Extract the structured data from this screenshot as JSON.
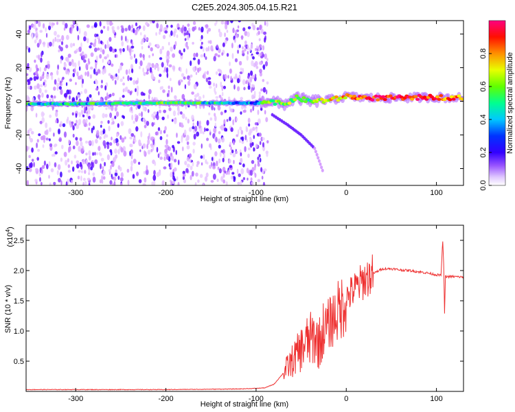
{
  "chart_data": [
    {
      "type": "heatmap",
      "title": "C2E5.2024.305.04.15.R21",
      "xlabel": "Height of straight line (km)",
      "ylabel": "Frequency (Hz)",
      "xlim": [
        -355,
        130
      ],
      "ylim": [
        -50,
        48
      ],
      "xticks": [
        -300,
        -200,
        -100,
        0,
        100
      ],
      "yticks": [
        -40,
        -20,
        0,
        20,
        40
      ],
      "colorbar": {
        "label": "Normalized spectral amplitude",
        "range": [
          0,
          1
        ],
        "ticks": [
          "0.0",
          "0.2",
          "0.4",
          "0.6",
          "0.8"
        ],
        "tick_values": [
          0.0,
          0.2,
          0.4,
          0.6,
          0.8
        ],
        "colormap": [
          "#ffffff",
          "#cc88ff",
          "#5500ff",
          "#0000ff",
          "#00c0ff",
          "#00ff80",
          "#80ff00",
          "#ffff00",
          "#ff8000",
          "#ff0000",
          "#ff0080"
        ]
      },
      "ridge": [
        {
          "x": -355,
          "y": -1.5,
          "a": 0.45
        },
        {
          "x": -300,
          "y": -1.5,
          "a": 0.45
        },
        {
          "x": -250,
          "y": -1.2,
          "a": 0.5
        },
        {
          "x": -200,
          "y": -1.0,
          "a": 0.55
        },
        {
          "x": -150,
          "y": -1.0,
          "a": 0.45
        },
        {
          "x": -100,
          "y": -1.2,
          "a": 0.35
        },
        {
          "x": -85,
          "y": 0.5,
          "a": 0.6
        },
        {
          "x": -70,
          "y": -2.0,
          "a": 0.55
        },
        {
          "x": -55,
          "y": 2.0,
          "a": 0.6
        },
        {
          "x": -40,
          "y": 0.0,
          "a": 0.5
        },
        {
          "x": -25,
          "y": 0.5,
          "a": 0.7
        },
        {
          "x": -10,
          "y": 1.5,
          "a": 0.7
        },
        {
          "x": 0,
          "y": 3.0,
          "a": 0.75
        },
        {
          "x": 20,
          "y": 2.0,
          "a": 0.9
        },
        {
          "x": 60,
          "y": 2.0,
          "a": 0.9
        },
        {
          "x": 95,
          "y": 2.5,
          "a": 0.85
        },
        {
          "x": 130,
          "y": 2.0,
          "a": 0.8
        }
      ],
      "side_branch": [
        {
          "x": -82,
          "y": -8
        },
        {
          "x": -65,
          "y": -14
        },
        {
          "x": -50,
          "y": -20
        },
        {
          "x": -35,
          "y": -28
        },
        {
          "x": -25,
          "y": -43
        }
      ],
      "noise_region_xmax": -95
    },
    {
      "type": "line",
      "title": "",
      "xlabel": "Height of straight line (km)",
      "ylabel": "SNR (10 * v/v)",
      "y_multiplier": "(x10",
      "y_multiplier_exp": "4",
      "xlim": [
        -355,
        130
      ],
      "ylim": [
        0,
        2.75
      ],
      "xticks": [
        -300,
        -200,
        -100,
        0,
        100
      ],
      "yticks": [
        0.5,
        1.0,
        1.5,
        2.0,
        2.5
      ],
      "color": "#ee3030",
      "series": [
        {
          "x": [
            -355,
            -300,
            -200,
            -120,
            -100,
            -90,
            -80,
            -70,
            -60,
            -50,
            -45,
            -40,
            -35,
            -30,
            -25,
            -20,
            -15,
            -10,
            -5,
            0,
            10,
            20,
            30,
            40,
            50,
            60,
            70,
            80,
            90,
            100,
            105,
            107,
            108,
            109,
            110,
            115,
            120,
            130
          ],
          "y": [
            0.03,
            0.03,
            0.03,
            0.04,
            0.05,
            0.06,
            0.12,
            0.3,
            0.5,
            0.7,
            0.8,
            0.85,
            0.9,
            0.8,
            1.0,
            1.1,
            1.2,
            1.3,
            1.4,
            1.55,
            1.7,
            1.85,
            1.95,
            2.03,
            2.03,
            2.01,
            2.0,
            1.98,
            1.96,
            1.93,
            1.92,
            2.5,
            2.1,
            1.3,
            1.9,
            1.9,
            1.9,
            1.89
          ]
        }
      ]
    }
  ]
}
